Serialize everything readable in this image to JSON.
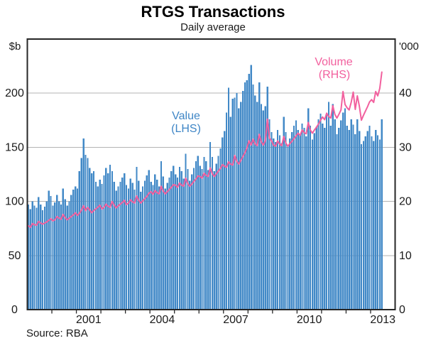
{
  "title": "RTGS Transactions",
  "subtitle": "Daily average",
  "source_note": "Source: RBA",
  "left_axis": {
    "unit": "$b",
    "ticks": [
      "0",
      "50",
      "100",
      "150",
      "200"
    ],
    "tick_values": [
      0,
      50,
      100,
      150,
      200
    ],
    "max": 250
  },
  "right_axis": {
    "unit": "'000",
    "ticks": [
      "0",
      "10",
      "20",
      "30",
      "40"
    ],
    "tick_values": [
      0,
      10,
      20,
      30,
      40
    ],
    "max": 50
  },
  "x_axis": {
    "start_year": 1999,
    "end_year": 2014,
    "year_labels": [
      2001,
      2004,
      2007,
      2010,
      2013
    ]
  },
  "annotations": {
    "bar_series_label": "Value",
    "bar_series_axis": "(LHS)",
    "line_series_label": "Volume",
    "line_series_axis": "(RHS)"
  },
  "colors": {
    "bar": "#4289c7",
    "line": "#f2609e",
    "grid": "#b3b3b3",
    "frame": "#262626",
    "text": "#1a1a1a",
    "bar_label": "#3f86c6"
  },
  "chart_data": {
    "type": "bar+line",
    "title": "RTGS Transactions",
    "subtitle": "Daily average",
    "frequency": "monthly",
    "x_start": "1999-01",
    "x_end": "2013-06",
    "grid": "horizontal",
    "left_ylim": [
      0,
      250
    ],
    "right_ylim": [
      0,
      50
    ],
    "series": [
      {
        "name": "Value (LHS)",
        "type": "bar",
        "axis": "left",
        "unit": "$b",
        "values": [
          97,
          93,
          100,
          96,
          94,
          104,
          97,
          92,
          95,
          100,
          110,
          105,
          96,
          99,
          106,
          100,
          97,
          112,
          102,
          96,
          100,
          106,
          111,
          114,
          112,
          128,
          140,
          158,
          143,
          140,
          131,
          126,
          128,
          118,
          114,
          120,
          116,
          124,
          131,
          126,
          134,
          128,
          118,
          110,
          114,
          118,
          122,
          126,
          115,
          112,
          121,
          117,
          111,
          132,
          119,
          109,
          114,
          119,
          124,
          129,
          118,
          115,
          125,
          120,
          114,
          137,
          123,
          112,
          117,
          122,
          128,
          133,
          125,
          122,
          132,
          128,
          121,
          144,
          130,
          119,
          125,
          131,
          137,
          142,
          133,
          130,
          141,
          137,
          129,
          155,
          141,
          128,
          135,
          142,
          149,
          159,
          165,
          182,
          205,
          178,
          195,
          196,
          200,
          186,
          192,
          202,
          210,
          212,
          218,
          226,
          208,
          198,
          192,
          210,
          190,
          184,
          188,
          206,
          176,
          164,
          158,
          155,
          166,
          161,
          154,
          178,
          164,
          152,
          158,
          164,
          170,
          175,
          166,
          162,
          172,
          168,
          160,
          186,
          170,
          157,
          163,
          169,
          176,
          181,
          172,
          168,
          180,
          192,
          170,
          190,
          176,
          162,
          168,
          175,
          182,
          186,
          170,
          166,
          176,
          171,
          162,
          176,
          165,
          153,
          156,
          160,
          165,
          170,
          160,
          156,
          166,
          161,
          157,
          176
        ]
      },
      {
        "name": "Volume (RHS)",
        "type": "line",
        "axis": "right",
        "unit": "'000",
        "values": [
          15.5,
          15.2,
          15.9,
          15.7,
          15.6,
          16.3,
          16.0,
          15.8,
          16.0,
          16.2,
          16.5,
          16.8,
          16.4,
          16.6,
          17.2,
          16.9,
          16.7,
          17.6,
          17.0,
          16.6,
          16.9,
          17.2,
          17.5,
          17.9,
          17.4,
          17.8,
          18.4,
          19.2,
          18.3,
          18.9,
          18.4,
          17.9,
          18.3,
          18.6,
          18.9,
          19.3,
          18.6,
          18.9,
          19.5,
          19.1,
          18.9,
          20.0,
          19.3,
          18.8,
          19.2,
          19.5,
          19.8,
          20.2,
          19.4,
          19.7,
          20.3,
          19.9,
          19.7,
          21.0,
          20.2,
          19.7,
          20.1,
          20.5,
          20.9,
          21.5,
          21.8,
          21.3,
          22.0,
          21.6,
          21.4,
          22.8,
          21.9,
          21.4,
          21.8,
          22.2,
          22.6,
          23.1,
          23.0,
          22.6,
          23.4,
          23.0,
          22.8,
          24.3,
          23.3,
          22.8,
          23.2,
          23.7,
          24.1,
          24.7,
          24.6,
          24.3,
          25.2,
          24.8,
          24.6,
          26.2,
          25.1,
          24.6,
          25.1,
          25.6,
          26.1,
          26.8,
          26.5,
          26.3,
          27.3,
          26.9,
          26.7,
          28.5,
          27.4,
          26.9,
          27.6,
          28.3,
          29.0,
          29.9,
          31.2,
          30.4,
          31.5,
          30.6,
          30.3,
          32.4,
          31.0,
          30.4,
          31.2,
          35.2,
          31.7,
          31.2,
          30.4,
          30.2,
          31.2,
          30.6,
          30.3,
          32.0,
          30.8,
          30.2,
          30.7,
          31.1,
          31.6,
          32.1,
          32.6,
          32.2,
          33.2,
          32.7,
          32.5,
          34.6,
          33.2,
          32.6,
          33.2,
          33.7,
          34.3,
          35.0,
          35.6,
          35.1,
          36.3,
          35.7,
          35.4,
          37.7,
          36.1,
          35.4,
          36.1,
          36.9,
          40.3,
          37.9,
          37.3,
          36.9,
          38.3,
          40.2,
          37.0,
          39.5,
          37.6,
          35.0,
          35.9,
          36.7,
          37.5,
          38.4,
          38.8,
          38.3,
          40.3,
          39.5,
          40.9,
          43.9
        ]
      }
    ]
  }
}
